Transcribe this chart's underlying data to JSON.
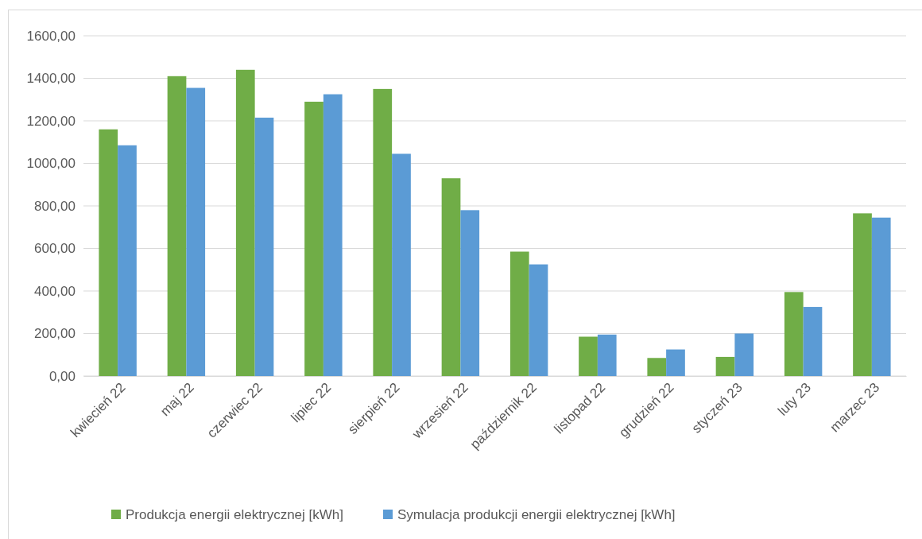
{
  "chart_data": {
    "type": "bar",
    "categories": [
      "kwiecień 22",
      "maj 22",
      "czerwiec 22",
      "lipiec 22",
      "sierpień 22",
      "wrzesień 22",
      "październik 22",
      "listopad 22",
      "grudzień 22",
      "styczeń 23",
      "luty 23",
      "marzec 23"
    ],
    "series": [
      {
        "name": "Produkcja energii elektrycznej [kWh]",
        "color": "#70ad47",
        "values": [
          1160,
          1410,
          1440,
          1290,
          1350,
          930,
          585,
          185,
          85,
          90,
          395,
          765
        ]
      },
      {
        "name": "Symulacja produkcji energii elektrycznej [kWh]",
        "color": "#5b9bd5",
        "values": [
          1085,
          1355,
          1215,
          1325,
          1045,
          780,
          525,
          195,
          125,
          200,
          325,
          745
        ]
      }
    ],
    "ylim": [
      0,
      1600
    ],
    "yticks": [
      {
        "value": 0,
        "label": "0,00"
      },
      {
        "value": 200,
        "label": "200,00"
      },
      {
        "value": 400,
        "label": "400,00"
      },
      {
        "value": 600,
        "label": "600,00"
      },
      {
        "value": 800,
        "label": "800,00"
      },
      {
        "value": 1000,
        "label": "1000,00"
      },
      {
        "value": 1200,
        "label": "1200,00"
      },
      {
        "value": 1400,
        "label": "1400,00"
      },
      {
        "value": 1600,
        "label": "1600,00"
      }
    ],
    "grid": "y",
    "legend": "bottom"
  }
}
